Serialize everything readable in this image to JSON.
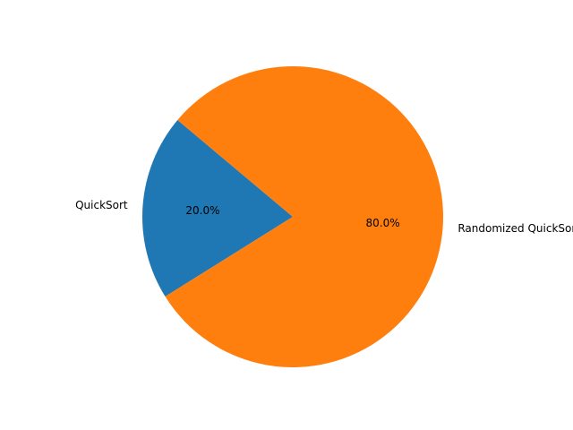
{
  "chart_data": {
    "type": "pie",
    "title": "",
    "start_angle_deg": 140,
    "counterclock": true,
    "slices": [
      {
        "label": "QuickSort",
        "value": 20,
        "percent_label": "20.0%",
        "color": "#1f77b4"
      },
      {
        "label": "Randomized QuickSort",
        "value": 80,
        "percent_label": "80.0%",
        "color": "#ff7f0e"
      }
    ]
  }
}
